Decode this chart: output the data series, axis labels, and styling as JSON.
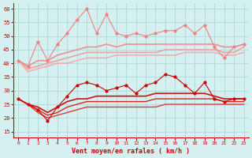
{
  "x": [
    0,
    1,
    2,
    3,
    4,
    5,
    6,
    7,
    8,
    9,
    10,
    11,
    12,
    13,
    14,
    15,
    16,
    17,
    18,
    19,
    20,
    21,
    22,
    23
  ],
  "series": [
    {
      "values": [
        41,
        39,
        48,
        41,
        47,
        51,
        56,
        60,
        51,
        58,
        51,
        50,
        51,
        50,
        51,
        52,
        52,
        54,
        51,
        54,
        46,
        42,
        46,
        47
      ],
      "color": "#f08080",
      "lw": 0.8,
      "marker": "o",
      "ms": 2.0,
      "zorder": 3,
      "smooth": false
    },
    {
      "values": [
        41,
        39,
        41,
        41,
        43,
        44,
        45,
        46,
        46,
        47,
        46,
        47,
        47,
        47,
        47,
        47,
        47,
        47,
        47,
        47,
        47,
        46,
        46,
        47
      ],
      "color": "#f09090",
      "lw": 1.2,
      "marker": null,
      "ms": 0,
      "zorder": 2,
      "smooth": true
    },
    {
      "values": [
        41,
        38,
        39,
        40,
        41,
        42,
        43,
        44,
        44,
        44,
        44,
        44,
        44,
        44,
        44,
        45,
        45,
        45,
        45,
        45,
        45,
        44,
        44,
        46
      ],
      "color": "#f0a0a0",
      "lw": 1.2,
      "marker": null,
      "ms": 0,
      "zorder": 2,
      "smooth": true
    },
    {
      "values": [
        41,
        37,
        38,
        39,
        40,
        40,
        41,
        42,
        42,
        42,
        43,
        43,
        43,
        43,
        43,
        43,
        43,
        44,
        44,
        44,
        44,
        43,
        43,
        44
      ],
      "color": "#f0b0b0",
      "lw": 1.2,
      "marker": null,
      "ms": 0,
      "zorder": 2,
      "smooth": true
    },
    {
      "values": [
        27,
        25,
        23,
        19,
        24,
        28,
        32,
        33,
        32,
        30,
        31,
        32,
        29,
        32,
        33,
        36,
        35,
        32,
        29,
        33,
        27,
        26,
        27,
        27
      ],
      "color": "#cc0000",
      "lw": 0.8,
      "marker": "o",
      "ms": 2.0,
      "zorder": 4,
      "smooth": false
    },
    {
      "values": [
        27,
        25,
        24,
        22,
        24,
        26,
        27,
        27,
        28,
        28,
        28,
        28,
        28,
        28,
        29,
        29,
        29,
        29,
        29,
        29,
        28,
        27,
        27,
        27
      ],
      "color": "#cc1111",
      "lw": 1.2,
      "marker": null,
      "ms": 0,
      "zorder": 3,
      "smooth": true
    },
    {
      "values": [
        27,
        25,
        23,
        21,
        22,
        24,
        25,
        26,
        26,
        26,
        26,
        26,
        26,
        26,
        27,
        27,
        27,
        27,
        27,
        27,
        27,
        26,
        26,
        26
      ],
      "color": "#dd2222",
      "lw": 1.0,
      "marker": null,
      "ms": 0,
      "zorder": 3,
      "smooth": true
    },
    {
      "values": [
        27,
        25,
        22,
        20,
        21,
        22,
        23,
        24,
        24,
        24,
        24,
        24,
        24,
        24,
        24,
        25,
        25,
        25,
        25,
        25,
        25,
        25,
        25,
        25
      ],
      "color": "#ee3333",
      "lw": 1.0,
      "marker": null,
      "ms": 0,
      "zorder": 3,
      "smooth": true
    }
  ],
  "ylim": [
    13,
    62
  ],
  "yticks": [
    15,
    20,
    25,
    30,
    35,
    40,
    45,
    50,
    55,
    60
  ],
  "xlabel": "Vent moyen/en rafales ( km/h )",
  "bg_color": "#d4f0f0",
  "grid_color": "#b0d8d8",
  "tick_color": "#cc0000",
  "xlabel_color": "#cc0000",
  "figsize": [
    3.2,
    2.0
  ],
  "dpi": 100
}
